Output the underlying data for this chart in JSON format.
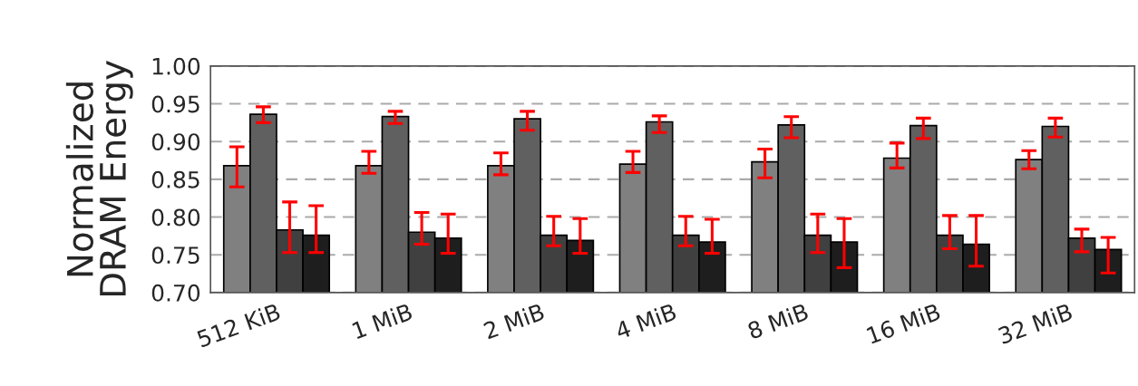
{
  "chart_data": {
    "type": "bar",
    "ylabel": "Normalized\nDRAM Energy",
    "categories": [
      "512 KiB",
      "1 MiB",
      "2 MiB",
      "4 MiB",
      "8 MiB",
      "16 MiB",
      "32 MiB"
    ],
    "series": [
      {
        "color": "#808080",
        "values": [
          0.868,
          0.868,
          0.868,
          0.87,
          0.873,
          0.878,
          0.876
        ],
        "errors": [
          [
            0.84,
            0.893
          ],
          [
            0.858,
            0.887
          ],
          [
            0.856,
            0.885
          ],
          [
            0.859,
            0.887
          ],
          [
            0.852,
            0.89
          ],
          [
            0.865,
            0.898
          ],
          [
            0.864,
            0.888
          ]
        ]
      },
      {
        "color": "#606060",
        "values": [
          0.936,
          0.933,
          0.93,
          0.926,
          0.922,
          0.921,
          0.92
        ],
        "errors": [
          [
            0.925,
            0.946
          ],
          [
            0.924,
            0.94
          ],
          [
            0.915,
            0.94
          ],
          [
            0.912,
            0.934
          ],
          [
            0.905,
            0.933
          ],
          [
            0.904,
            0.931
          ],
          [
            0.906,
            0.931
          ]
        ]
      },
      {
        "color": "#404040",
        "values": [
          0.783,
          0.78,
          0.776,
          0.776,
          0.776,
          0.776,
          0.772
        ],
        "errors": [
          [
            0.753,
            0.82
          ],
          [
            0.764,
            0.806
          ],
          [
            0.762,
            0.801
          ],
          [
            0.762,
            0.801
          ],
          [
            0.753,
            0.804
          ],
          [
            0.758,
            0.802
          ],
          [
            0.754,
            0.784
          ]
        ]
      },
      {
        "color": "#1e1e1e",
        "values": [
          0.776,
          0.772,
          0.769,
          0.767,
          0.767,
          0.764,
          0.757
        ],
        "errors": [
          [
            0.753,
            0.815
          ],
          [
            0.752,
            0.804
          ],
          [
            0.752,
            0.798
          ],
          [
            0.752,
            0.797
          ],
          [
            0.733,
            0.798
          ],
          [
            0.735,
            0.802
          ],
          [
            0.726,
            0.773
          ]
        ]
      }
    ],
    "ylim": [
      0.7,
      1.0
    ],
    "yticks": [
      {
        "value": 0.7,
        "label": "0.70"
      },
      {
        "value": 0.75,
        "label": "0.75"
      },
      {
        "value": 0.8,
        "label": "0.80"
      },
      {
        "value": 0.85,
        "label": "0.85"
      },
      {
        "value": 0.9,
        "label": "0.90"
      },
      {
        "value": 0.95,
        "label": "0.95"
      },
      {
        "value": 1.0,
        "label": "1.00"
      }
    ],
    "grid": "y",
    "legend": false
  }
}
